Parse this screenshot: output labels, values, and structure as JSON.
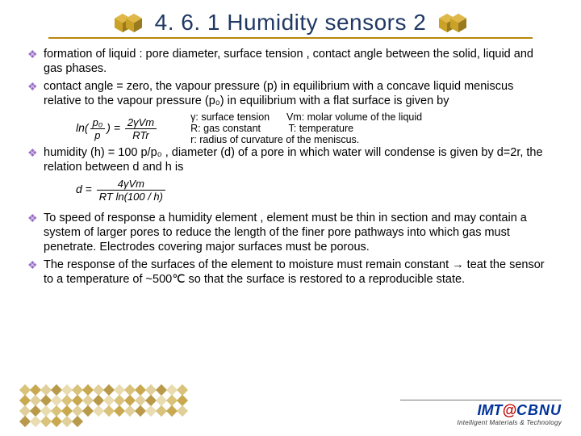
{
  "title": "4. 6. 1 Humidity sensors 2",
  "colors": {
    "title": "#203864",
    "hr": "#b8860b",
    "bullet_mark": "#9a6fc7",
    "hex_gradient_a": "#d4a017",
    "hex_gradient_b": "#8b6914",
    "logo_blue": "#003399",
    "logo_red": "#c00000"
  },
  "bullets": [
    {
      "text": "formation of liquid : pore diameter, surface tension , contact angle between the solid, liquid and gas phases."
    },
    {
      "text": "contact angle = zero, the vapour pressure (p) in equilibrium with a concave liquid meniscus relative to the vapour pressure (p₀) in equilibrium with a flat surface is given by"
    }
  ],
  "formula1": {
    "lhs_top": "p₀",
    "lhs_bot": "p",
    "rhs_top": "2γVm",
    "rhs_bot": "RTr",
    "prefix": "ln(",
    "mid": ") ="
  },
  "legend": [
    "γ: surface tension      Vm: molar volume of the liquid",
    "R: gas constant          T: temperature",
    "r: radius of curvature of the meniscus."
  ],
  "bullet3": "humidity (h) = 100 p/p₀ , diameter (d) of a pore in which water will condense is given by d=2r, the relation between d and h is",
  "formula2": {
    "lhs": "d =",
    "top": "4γVm",
    "bot": "RT ln(100 / h)"
  },
  "bullet4": "To speed of response a humidity element , element must  be thin in section and may contain a system of larger pores to reduce the length of the finer pore pathways into which gas must penetrate. Electrodes covering major surfaces must be porous.",
  "bullet5": "The response of the surfaces of the element to moisture must remain constant → teat the sensor to a temperature of ~500℃ so that the surface is restored to a reproducible state.",
  "logo": {
    "imt": "IMT",
    "at": "@",
    "cbnu": "CBNU",
    "sub": "Intelligent Materials & Technology"
  },
  "diamonds": {
    "count": 54,
    "palette": [
      "#d9c27a",
      "#c9a94f",
      "#e0cf9a",
      "#b89a4a",
      "#e8dcb0"
    ]
  }
}
